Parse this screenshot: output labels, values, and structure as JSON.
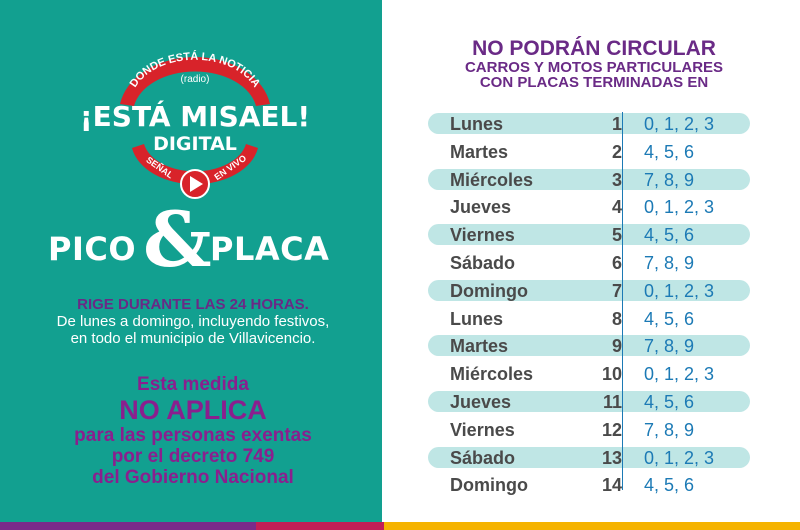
{
  "logo": {
    "arc_text": "DONDE ESTÁ LA NOTICIA",
    "radio": "(radio)",
    "main": "¡ESTÁ MISAEL!",
    "sub": "DIGITAL",
    "left_tag": "SEÑAL",
    "right_tag": "EN VIVO"
  },
  "pico": {
    "word1": "PICO",
    "amp": "&",
    "word2": "PLACA"
  },
  "rige": {
    "headline": "RIGE DURANTE LAS 24 HORAS.",
    "body": "De lunes a domingo, incluyendo festivos, en todo el municipio de Villavicencio."
  },
  "medida": {
    "line1": "Esta medida",
    "line2": "NO APLICA",
    "line3": "para las personas exentas",
    "line4": "por el decreto 749",
    "line5": "del Gobierno Nacional"
  },
  "title": {
    "line1": "NO PODRÁN CIRCULAR",
    "line2": "CARROS Y MOTOS PARTICULARES",
    "line3": "CON PLACAS TERMINADAS EN"
  },
  "schedule": [
    {
      "day": "Lunes",
      "num": "1",
      "plates": "0, 1, 2, 3"
    },
    {
      "day": "Martes",
      "num": "2",
      "plates": "4, 5, 6"
    },
    {
      "day": "Miércoles",
      "num": "3",
      "plates": "7, 8, 9"
    },
    {
      "day": "Jueves",
      "num": "4",
      "plates": "0, 1, 2, 3"
    },
    {
      "day": "Viernes",
      "num": "5",
      "plates": "4, 5, 6"
    },
    {
      "day": "Sábado",
      "num": "6",
      "plates": "7, 8, 9"
    },
    {
      "day": "Domingo",
      "num": "7",
      "plates": "0, 1, 2, 3"
    },
    {
      "day": "Lunes",
      "num": "8",
      "plates": "4, 5, 6"
    },
    {
      "day": "Martes",
      "num": "9",
      "plates": "7, 8, 9"
    },
    {
      "day": "Miércoles",
      "num": "10",
      "plates": "0, 1, 2, 3"
    },
    {
      "day": "Jueves",
      "num": "11",
      "plates": "4, 5, 6"
    },
    {
      "day": "Viernes",
      "num": "12",
      "plates": "7, 8, 9"
    },
    {
      "day": "Sábado",
      "num": "13",
      "plates": "0, 1, 2, 3"
    },
    {
      "day": "Domingo",
      "num": "14",
      "plates": "4, 5, 6"
    }
  ],
  "colors": {
    "teal": "#12a090",
    "purple": "#6a2a86",
    "magenta": "#8a1f8e",
    "logo_red": "#d8232a",
    "band": "#bfe6e5",
    "plate_blue": "#1c7ab5"
  }
}
